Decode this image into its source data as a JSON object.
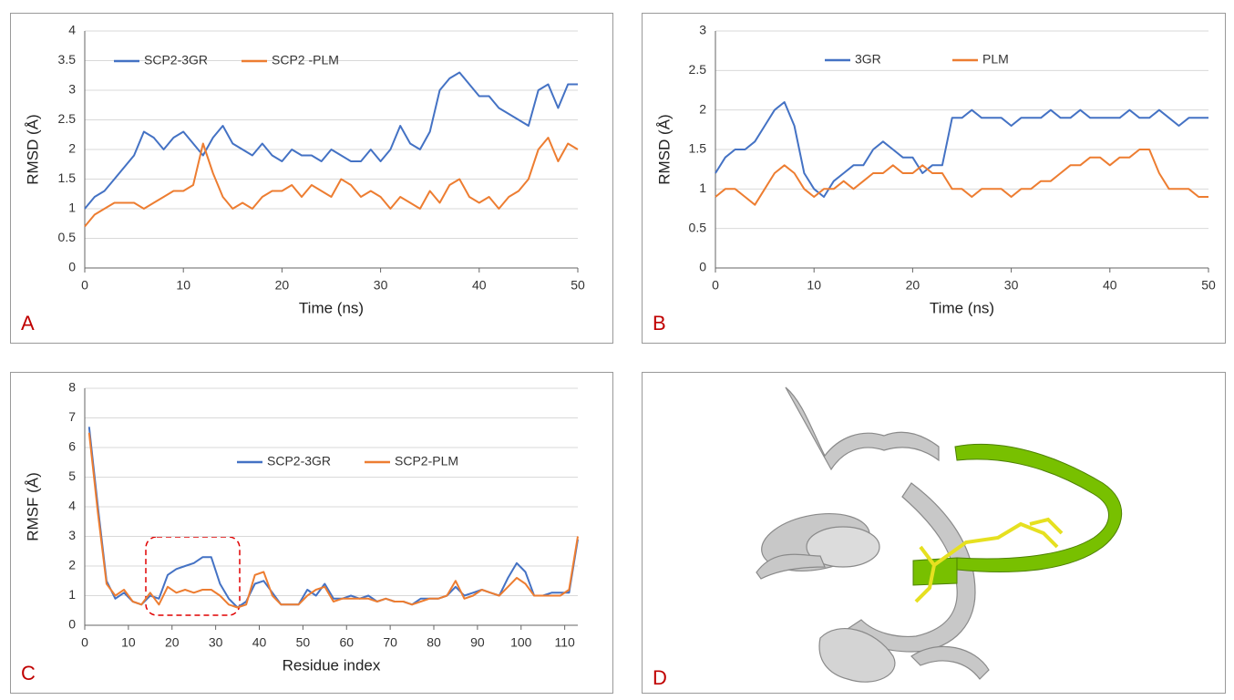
{
  "chart_data": [
    {
      "type": "line",
      "panel_label": "A",
      "xlabel": "Time (ns)",
      "ylabel": "RMSD (Å)",
      "legend": "top",
      "grid": true,
      "xlim": [
        0,
        50
      ],
      "xticks": [
        0,
        10,
        20,
        30,
        40,
        50
      ],
      "ylim": [
        0,
        4
      ],
      "yticks": [
        0,
        0.5,
        1,
        1.5,
        2,
        2.5,
        3,
        3.5,
        4
      ],
      "x": [
        0,
        1,
        2,
        3,
        4,
        5,
        6,
        7,
        8,
        9,
        10,
        11,
        12,
        13,
        14,
        15,
        16,
        17,
        18,
        19,
        20,
        21,
        22,
        23,
        24,
        25,
        26,
        27,
        28,
        29,
        30,
        31,
        32,
        33,
        34,
        35,
        36,
        37,
        38,
        39,
        40,
        41,
        42,
        43,
        44,
        45,
        46,
        47,
        48,
        49,
        50
      ],
      "series": [
        {
          "name": "SCP2-3GR",
          "color": "#4472c4",
          "values": [
            1.0,
            1.2,
            1.3,
            1.5,
            1.7,
            1.9,
            2.3,
            2.2,
            2.0,
            2.2,
            2.3,
            2.1,
            1.9,
            2.2,
            2.4,
            2.1,
            2.0,
            1.9,
            2.1,
            1.9,
            1.8,
            2.0,
            1.9,
            1.9,
            1.8,
            2.0,
            1.9,
            1.8,
            1.8,
            2.0,
            1.8,
            2.0,
            2.4,
            2.1,
            2.0,
            2.3,
            3.0,
            3.2,
            3.3,
            3.1,
            2.9,
            2.9,
            2.7,
            2.6,
            2.5,
            2.4,
            3.0,
            3.1,
            2.7,
            3.1,
            3.1
          ]
        },
        {
          "name": "SCP2 -PLM",
          "color": "#ed7d31",
          "values": [
            0.7,
            0.9,
            1.0,
            1.1,
            1.1,
            1.1,
            1.0,
            1.1,
            1.2,
            1.3,
            1.3,
            1.4,
            2.1,
            1.6,
            1.2,
            1.0,
            1.1,
            1.0,
            1.2,
            1.3,
            1.3,
            1.4,
            1.2,
            1.4,
            1.3,
            1.2,
            1.5,
            1.4,
            1.2,
            1.3,
            1.2,
            1.0,
            1.2,
            1.1,
            1.0,
            1.3,
            1.1,
            1.4,
            1.5,
            1.2,
            1.1,
            1.2,
            1.0,
            1.2,
            1.3,
            1.5,
            2.0,
            2.2,
            1.8,
            2.1,
            2.0
          ]
        }
      ]
    },
    {
      "type": "line",
      "panel_label": "B",
      "xlabel": "Time (ns)",
      "ylabel": "RMSD (Å)",
      "legend": "top",
      "grid": true,
      "xlim": [
        0,
        50
      ],
      "xticks": [
        0,
        10,
        20,
        30,
        40,
        50
      ],
      "ylim": [
        0,
        3
      ],
      "yticks": [
        0,
        0.5,
        1,
        1.5,
        2,
        2.5,
        3
      ],
      "x": [
        0,
        1,
        2,
        3,
        4,
        5,
        6,
        7,
        8,
        9,
        10,
        11,
        12,
        13,
        14,
        15,
        16,
        17,
        18,
        19,
        20,
        21,
        22,
        23,
        24,
        25,
        26,
        27,
        28,
        29,
        30,
        31,
        32,
        33,
        34,
        35,
        36,
        37,
        38,
        39,
        40,
        41,
        42,
        43,
        44,
        45,
        46,
        47,
        48,
        49,
        50
      ],
      "series": [
        {
          "name": "3GR",
          "color": "#4472c4",
          "values": [
            1.2,
            1.4,
            1.5,
            1.5,
            1.6,
            1.8,
            2.0,
            2.1,
            1.8,
            1.2,
            1.0,
            0.9,
            1.1,
            1.2,
            1.3,
            1.3,
            1.5,
            1.6,
            1.5,
            1.4,
            1.4,
            1.2,
            1.3,
            1.3,
            1.9,
            1.9,
            2.0,
            1.9,
            1.9,
            1.9,
            1.8,
            1.9,
            1.9,
            1.9,
            2.0,
            1.9,
            1.9,
            2.0,
            1.9,
            1.9,
            1.9,
            1.9,
            2.0,
            1.9,
            1.9,
            2.0,
            1.9,
            1.8,
            1.9,
            1.9,
            1.9
          ]
        },
        {
          "name": "PLM",
          "color": "#ed7d31",
          "values": [
            0.9,
            1.0,
            1.0,
            0.9,
            0.8,
            1.0,
            1.2,
            1.3,
            1.2,
            1.0,
            0.9,
            1.0,
            1.0,
            1.1,
            1.0,
            1.1,
            1.2,
            1.2,
            1.3,
            1.2,
            1.2,
            1.3,
            1.2,
            1.2,
            1.0,
            1.0,
            0.9,
            1.0,
            1.0,
            1.0,
            0.9,
            1.0,
            1.0,
            1.1,
            1.1,
            1.2,
            1.3,
            1.3,
            1.4,
            1.4,
            1.3,
            1.4,
            1.4,
            1.5,
            1.5,
            1.2,
            1.0,
            1.0,
            1.0,
            0.9,
            0.9
          ]
        }
      ]
    },
    {
      "type": "line",
      "panel_label": "C",
      "xlabel": "Residue index",
      "ylabel": "RMSF (Å)",
      "legend": "center",
      "grid": true,
      "xlim": [
        0,
        113
      ],
      "xticks": [
        0,
        10,
        20,
        30,
        40,
        50,
        60,
        70,
        80,
        90,
        100,
        110
      ],
      "ylim": [
        0,
        8
      ],
      "yticks": [
        0,
        1,
        2,
        3,
        4,
        5,
        6,
        7,
        8
      ],
      "x": [
        1,
        3,
        5,
        7,
        9,
        11,
        13,
        15,
        17,
        19,
        21,
        23,
        25,
        27,
        29,
        31,
        33,
        35,
        37,
        39,
        41,
        43,
        45,
        47,
        49,
        51,
        53,
        55,
        57,
        59,
        61,
        63,
        65,
        67,
        69,
        71,
        73,
        75,
        77,
        79,
        81,
        83,
        85,
        87,
        89,
        91,
        93,
        95,
        97,
        99,
        101,
        103,
        105,
        107,
        109,
        111,
        113
      ],
      "series": [
        {
          "name": "SCP2-3GR",
          "color": "#4472c4",
          "values": [
            6.7,
            4.0,
            1.5,
            0.9,
            1.1,
            0.8,
            0.7,
            1.0,
            0.9,
            1.7,
            1.9,
            2.0,
            2.1,
            2.3,
            2.3,
            1.4,
            0.9,
            0.6,
            0.8,
            1.4,
            1.5,
            1.1,
            0.7,
            0.7,
            0.7,
            1.2,
            1.0,
            1.4,
            0.9,
            0.9,
            1.0,
            0.9,
            1.0,
            0.8,
            0.9,
            0.8,
            0.8,
            0.7,
            0.9,
            0.9,
            0.9,
            1.0,
            1.3,
            1.0,
            1.1,
            1.2,
            1.1,
            1.0,
            1.6,
            2.1,
            1.8,
            1.0,
            1.0,
            1.1,
            1.1,
            1.1,
            2.9
          ]
        },
        {
          "name": "SCP2-PLM",
          "color": "#ed7d31",
          "values": [
            6.5,
            3.8,
            1.4,
            1.0,
            1.2,
            0.8,
            0.7,
            1.1,
            0.7,
            1.3,
            1.1,
            1.2,
            1.1,
            1.2,
            1.2,
            1.0,
            0.7,
            0.6,
            0.7,
            1.7,
            1.8,
            1.0,
            0.7,
            0.7,
            0.7,
            1.0,
            1.2,
            1.3,
            0.8,
            0.9,
            0.9,
            0.9,
            0.9,
            0.8,
            0.9,
            0.8,
            0.8,
            0.7,
            0.8,
            0.9,
            0.9,
            1.0,
            1.5,
            0.9,
            1.0,
            1.2,
            1.1,
            1.0,
            1.3,
            1.6,
            1.4,
            1.0,
            1.0,
            1.0,
            1.0,
            1.2,
            3.0
          ]
        }
      ]
    }
  ],
  "image_panel": {
    "label": "D"
  }
}
